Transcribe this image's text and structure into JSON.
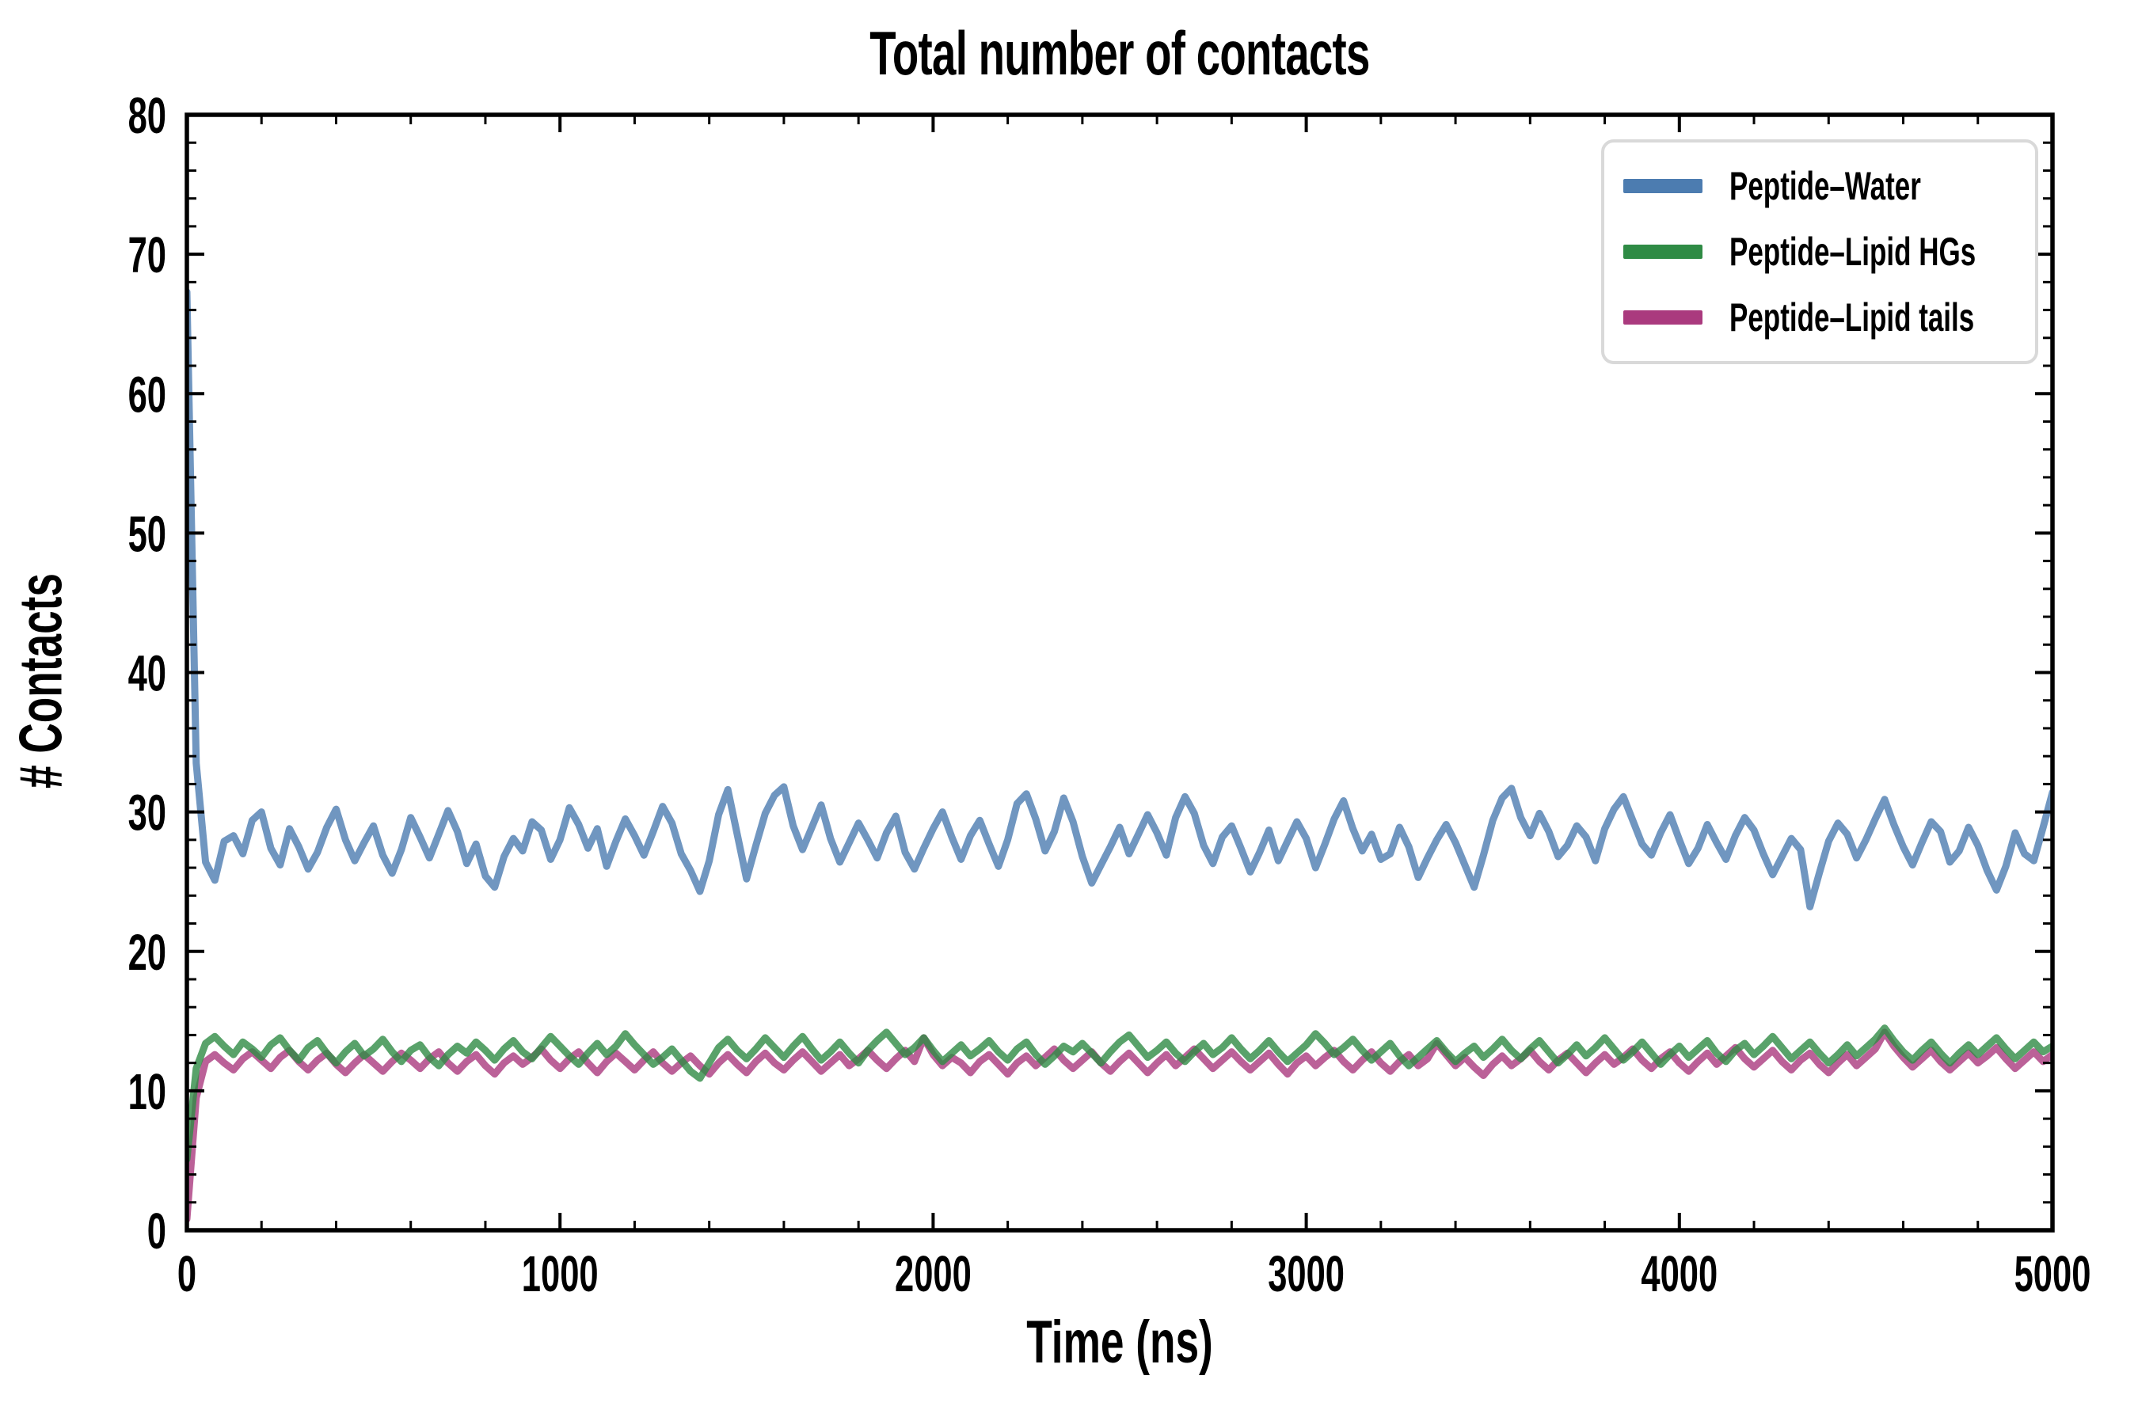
{
  "title": "Total number of contacts",
  "axes": {
    "x_label": "Time (ns)",
    "y_label": "# Contacts",
    "x_ticks": [
      0,
      1000,
      2000,
      3000,
      4000,
      5000
    ],
    "x_minor_step": 200,
    "y_ticks": [
      0,
      10,
      20,
      30,
      40,
      50,
      60,
      70,
      80
    ],
    "y_minor_step": 2
  },
  "legend": {
    "entries": [
      {
        "label": "Peptide–Water",
        "color": "#4c7cb0"
      },
      {
        "label": "Peptide–Lipid HGs",
        "color": "#2f8b45"
      },
      {
        "label": "Peptide–Lipid tails",
        "color": "#aa3a7e"
      }
    ]
  },
  "chart_data": {
    "type": "line",
    "title": "Total number of contacts",
    "xlabel": "Time (ns)",
    "ylabel": "# Contacts",
    "xlim": [
      0,
      5000
    ],
    "ylim": [
      0,
      80
    ],
    "grid": false,
    "legend_position": "upper right",
    "x_step_ns": 25,
    "line_width": 9,
    "line_opacity": 0.8,
    "draw_order": [
      0,
      2,
      1
    ],
    "series": [
      {
        "name": "Peptide-Water",
        "color": "#4c7cb0",
        "mean": 27.8,
        "values": [
          67.3,
          33.5,
          26.4,
          25.1,
          27.9,
          28.3,
          27.0,
          29.4,
          30.0,
          27.4,
          26.2,
          28.8,
          27.5,
          25.9,
          27.1,
          28.9,
          30.2,
          28.0,
          26.5,
          27.8,
          29.0,
          26.9,
          25.6,
          27.3,
          29.6,
          28.2,
          26.7,
          28.4,
          30.1,
          28.6,
          26.3,
          27.7,
          25.4,
          24.6,
          26.8,
          28.1,
          27.2,
          29.3,
          28.7,
          26.6,
          28.0,
          30.3,
          29.1,
          27.4,
          28.8,
          26.1,
          27.9,
          29.5,
          28.3,
          26.9,
          28.6,
          30.4,
          29.2,
          27.0,
          25.8,
          24.3,
          26.5,
          29.8,
          31.6,
          28.4,
          25.2,
          27.6,
          29.9,
          31.2,
          31.8,
          29.0,
          27.3,
          28.9,
          30.5,
          28.1,
          26.4,
          27.8,
          29.2,
          28.0,
          26.7,
          28.5,
          29.7,
          27.1,
          25.9,
          27.4,
          28.8,
          30.0,
          28.2,
          26.6,
          28.3,
          29.4,
          27.7,
          26.1,
          28.0,
          30.6,
          31.3,
          29.5,
          27.2,
          28.6,
          31.0,
          29.3,
          26.8,
          24.9,
          26.2,
          27.5,
          28.9,
          27.0,
          28.4,
          29.8,
          28.5,
          26.9,
          29.6,
          31.1,
          29.9,
          27.6,
          26.3,
          28.2,
          29.0,
          27.4,
          25.7,
          27.1,
          28.7,
          26.5,
          27.9,
          29.3,
          28.1,
          26.0,
          27.7,
          29.5,
          30.8,
          28.8,
          27.2,
          28.4,
          26.6,
          27.0,
          28.9,
          27.5,
          25.3,
          26.7,
          28.0,
          29.1,
          27.8,
          26.2,
          24.6,
          26.9,
          29.4,
          31.0,
          31.7,
          29.6,
          28.3,
          29.9,
          28.6,
          26.8,
          27.6,
          29.0,
          28.2,
          26.5,
          28.8,
          30.2,
          31.1,
          29.4,
          27.7,
          26.9,
          28.5,
          29.8,
          28.0,
          26.3,
          27.4,
          29.1,
          27.8,
          26.6,
          28.3,
          29.6,
          28.7,
          27.0,
          25.5,
          26.8,
          28.1,
          27.3,
          23.2,
          25.6,
          27.9,
          29.2,
          28.4,
          26.7,
          28.0,
          29.5,
          30.9,
          29.1,
          27.5,
          26.2,
          27.8,
          29.3,
          28.6,
          26.4,
          27.2,
          28.9,
          27.6,
          25.8,
          24.4,
          26.1,
          28.5,
          27.0,
          26.5,
          28.9,
          31.4
        ]
      },
      {
        "name": "Peptide-Lipid HGs",
        "color": "#2f8b45",
        "mean": 12.9,
        "values": [
          5.1,
          11.6,
          13.4,
          13.9,
          13.2,
          12.6,
          13.5,
          13.0,
          12.4,
          13.3,
          13.8,
          12.9,
          12.2,
          13.1,
          13.6,
          12.7,
          12.0,
          12.8,
          13.4,
          12.5,
          13.0,
          13.7,
          12.8,
          12.1,
          12.9,
          13.3,
          12.4,
          11.8,
          12.6,
          13.2,
          12.7,
          13.5,
          12.9,
          12.2,
          13.0,
          13.6,
          12.8,
          12.3,
          13.1,
          13.9,
          13.2,
          12.5,
          11.9,
          12.7,
          13.4,
          12.6,
          13.2,
          14.1,
          13.3,
          12.6,
          11.9,
          12.4,
          13.0,
          12.2,
          11.4,
          10.9,
          12.0,
          13.1,
          13.7,
          12.9,
          12.3,
          13.0,
          13.8,
          13.1,
          12.4,
          13.2,
          13.9,
          13.0,
          12.2,
          12.8,
          13.5,
          12.7,
          12.0,
          12.9,
          13.6,
          14.2,
          13.4,
          12.6,
          13.1,
          13.8,
          12.9,
          12.1,
          12.7,
          13.3,
          12.5,
          13.0,
          13.6,
          12.8,
          12.2,
          13.0,
          13.5,
          12.6,
          11.9,
          12.5,
          13.2,
          12.8,
          13.4,
          12.7,
          12.0,
          12.8,
          13.5,
          14.0,
          13.2,
          12.4,
          12.9,
          13.5,
          12.7,
          12.1,
          12.8,
          13.4,
          12.6,
          13.1,
          13.8,
          13.0,
          12.3,
          12.9,
          13.6,
          12.8,
          12.1,
          12.7,
          13.3,
          14.1,
          13.4,
          12.6,
          13.1,
          13.7,
          12.9,
          12.2,
          12.8,
          13.4,
          12.5,
          11.8,
          12.4,
          13.0,
          13.6,
          12.8,
          12.1,
          12.7,
          13.2,
          12.4,
          13.0,
          13.7,
          12.9,
          12.3,
          13.0,
          13.6,
          12.8,
          12.0,
          12.6,
          13.3,
          12.5,
          13.1,
          13.8,
          13.0,
          12.2,
          12.8,
          13.5,
          12.7,
          11.9,
          12.6,
          13.2,
          12.4,
          13.0,
          13.6,
          12.7,
          12.1,
          12.9,
          13.4,
          12.6,
          13.2,
          13.9,
          13.1,
          12.3,
          12.9,
          13.5,
          12.7,
          12.0,
          12.6,
          13.3,
          12.5,
          13.1,
          13.7,
          14.5,
          13.6,
          12.8,
          12.2,
          12.9,
          13.5,
          12.7,
          12.0,
          12.7,
          13.3,
          12.6,
          13.2,
          13.8,
          13.0,
          12.3,
          12.9,
          13.5,
          12.8,
          13.2
        ]
      },
      {
        "name": "Peptide-Lipid tails",
        "color": "#aa3a7e",
        "mean": 12.2,
        "values": [
          0.8,
          9.5,
          12.1,
          12.6,
          12.0,
          11.5,
          12.3,
          12.8,
          12.2,
          11.6,
          12.4,
          12.9,
          12.1,
          11.5,
          12.2,
          12.7,
          11.9,
          11.3,
          12.0,
          12.6,
          12.0,
          11.4,
          12.1,
          12.7,
          12.2,
          11.6,
          12.3,
          12.8,
          12.0,
          11.4,
          12.1,
          12.6,
          11.8,
          11.2,
          12.0,
          12.5,
          11.9,
          12.4,
          13.0,
          12.2,
          11.6,
          12.3,
          12.8,
          12.0,
          11.3,
          12.1,
          12.7,
          12.1,
          11.5,
          12.2,
          12.8,
          12.0,
          11.4,
          12.0,
          12.5,
          11.8,
          11.2,
          12.0,
          12.6,
          11.9,
          11.3,
          12.1,
          12.7,
          12.0,
          11.5,
          12.2,
          12.8,
          12.1,
          11.4,
          12.0,
          12.6,
          11.8,
          12.3,
          12.9,
          12.2,
          11.6,
          12.3,
          12.9,
          12.1,
          13.8,
          12.6,
          11.8,
          12.4,
          12.0,
          11.3,
          12.1,
          12.6,
          11.9,
          11.2,
          12.0,
          12.5,
          11.8,
          12.4,
          13.0,
          12.2,
          11.6,
          12.2,
          12.8,
          12.0,
          11.4,
          12.1,
          12.7,
          12.0,
          11.3,
          12.0,
          12.6,
          11.8,
          12.4,
          13.0,
          12.3,
          11.6,
          12.2,
          12.8,
          12.1,
          11.5,
          12.1,
          12.7,
          11.9,
          11.2,
          12.0,
          12.5,
          11.8,
          12.4,
          12.9,
          12.1,
          11.5,
          12.2,
          12.8,
          12.0,
          11.4,
          12.1,
          12.6,
          11.8,
          12.3,
          13.4,
          12.6,
          11.8,
          12.4,
          11.7,
          11.1,
          11.9,
          12.5,
          11.8,
          12.3,
          12.9,
          12.1,
          11.5,
          12.2,
          12.7,
          12.0,
          11.3,
          12.0,
          12.6,
          11.9,
          12.4,
          13.0,
          12.2,
          11.6,
          12.3,
          12.8,
          12.0,
          11.4,
          12.1,
          12.7,
          11.9,
          12.5,
          13.1,
          12.3,
          11.7,
          12.3,
          12.9,
          12.1,
          11.5,
          12.2,
          12.7,
          11.9,
          11.3,
          12.0,
          12.6,
          11.8,
          12.4,
          13.0,
          14.2,
          13.2,
          12.4,
          11.7,
          12.3,
          12.9,
          12.1,
          11.5,
          12.1,
          12.7,
          12.0,
          12.5,
          13.1,
          12.3,
          11.6,
          12.2,
          12.8,
          12.1,
          12.6
        ]
      }
    ]
  }
}
